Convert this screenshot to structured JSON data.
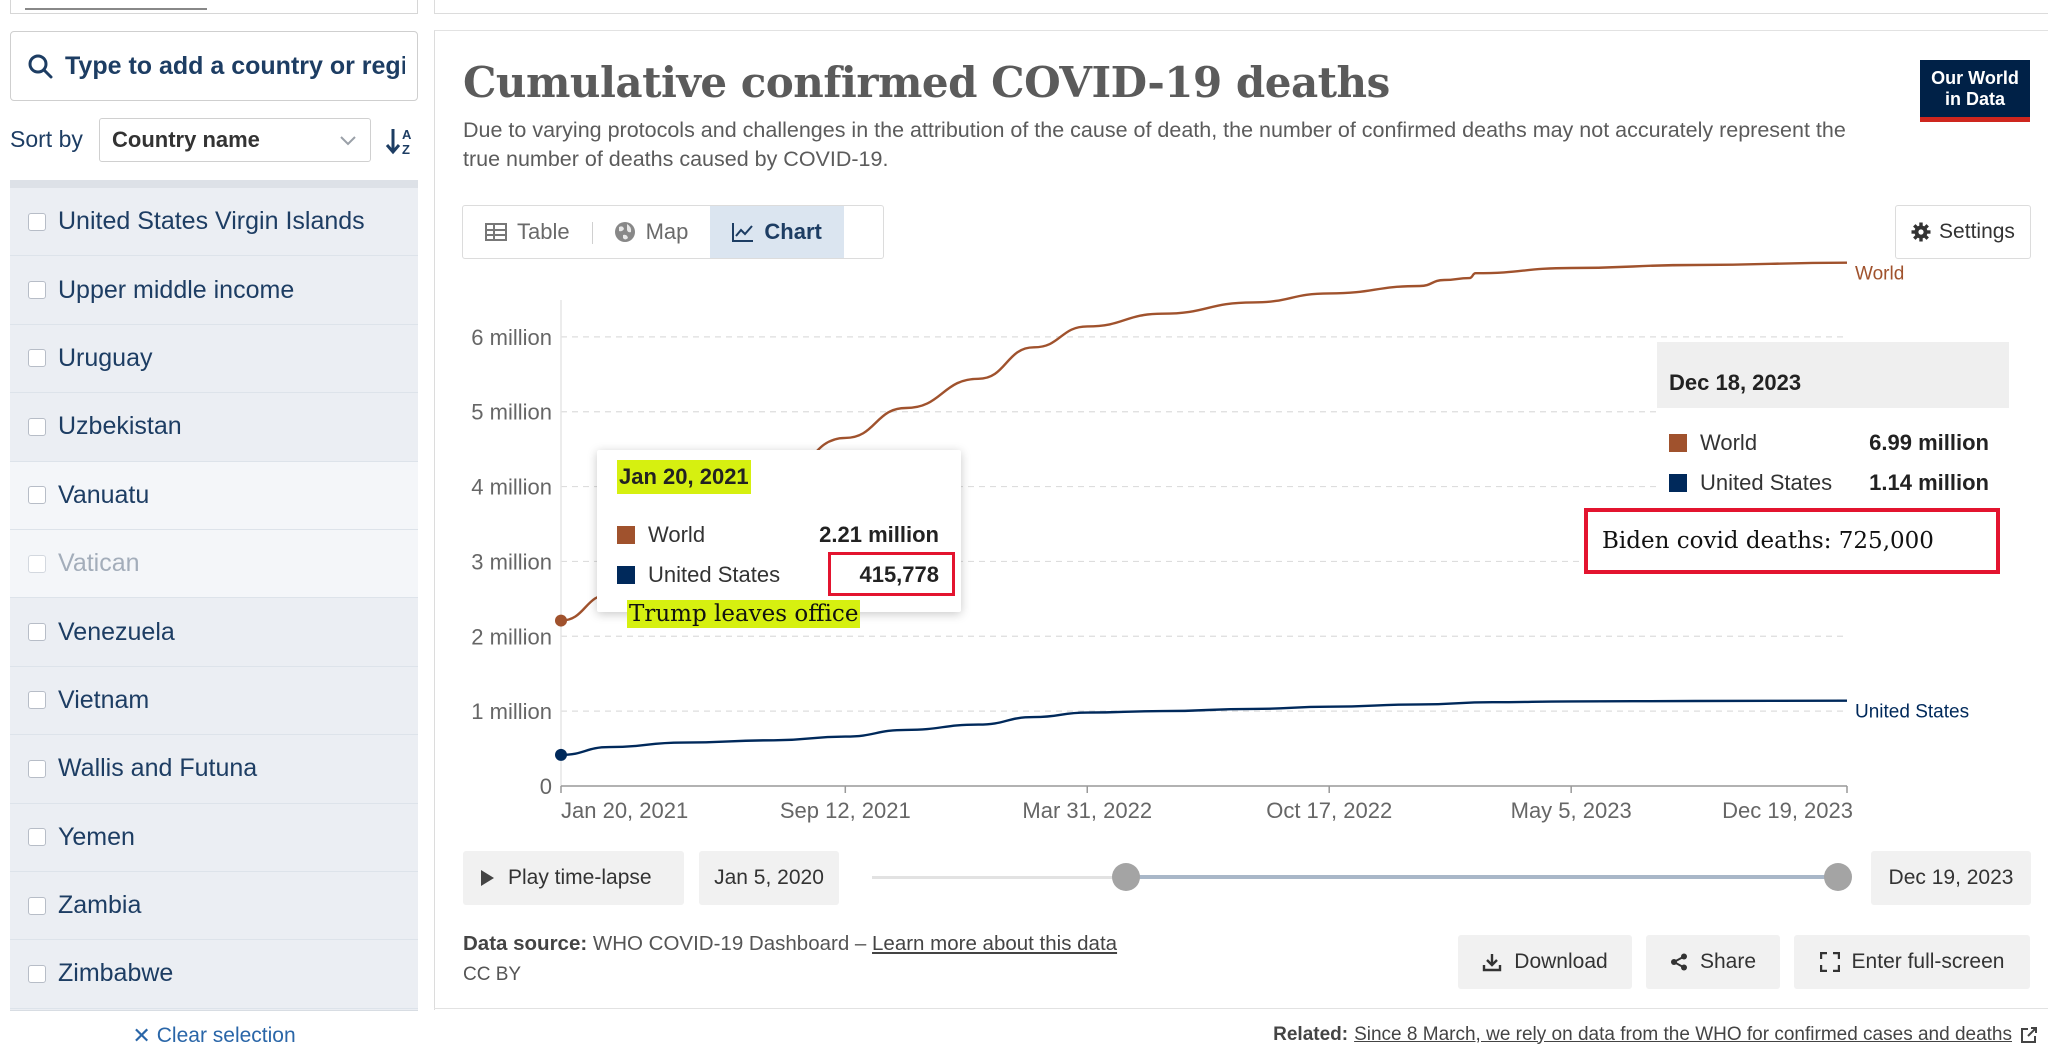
{
  "sidebar": {
    "search_placeholder": "Type to add a country or region",
    "sort_label": "Sort by",
    "sort_value": "Country name",
    "items": [
      {
        "label": "United States Virgin Islands",
        "disabled": false
      },
      {
        "label": "Upper middle income",
        "disabled": false
      },
      {
        "label": "Uruguay",
        "disabled": false
      },
      {
        "label": "Uzbekistan",
        "disabled": false
      },
      {
        "label": "Vanuatu",
        "disabled": false
      },
      {
        "label": "Vatican",
        "disabled": true
      },
      {
        "label": "Venezuela",
        "disabled": false
      },
      {
        "label": "Vietnam",
        "disabled": false
      },
      {
        "label": "Wallis and Futuna",
        "disabled": false
      },
      {
        "label": "Yemen",
        "disabled": false
      },
      {
        "label": "Zambia",
        "disabled": false
      },
      {
        "label": "Zimbabwe",
        "disabled": false
      }
    ],
    "clear_selection": "Clear selection"
  },
  "header": {
    "title": "Cumulative confirmed COVID-19 deaths",
    "subtitle": "Due to varying protocols and challenges in the attribution of the cause of death, the number of confirmed deaths may not accurately represent the true number of deaths caused by COVID-19.",
    "logo_line1": "Our World",
    "logo_line2": "in Data"
  },
  "tabs": [
    {
      "label": "Table",
      "icon": "table-icon"
    },
    {
      "label": "Map",
      "icon": "globe-icon"
    },
    {
      "label": "Chart",
      "icon": "line-chart-icon",
      "active": true
    }
  ],
  "settings_label": "Settings",
  "tooltip_left": {
    "date": "Jan 20, 2021",
    "rows": [
      {
        "name": "World",
        "value": "2.21 million"
      },
      {
        "name": "United States",
        "value": "415,778"
      }
    ],
    "annotation": "Trump leaves office"
  },
  "tooltip_right": {
    "date": "Dec 18, 2023",
    "rows": [
      {
        "name": "World",
        "value": "6.99 million"
      },
      {
        "name": "United States",
        "value": "1.14 million"
      }
    ],
    "annotation": "Biden covid deaths: 725,000"
  },
  "timeline": {
    "play_label": "Play time-lapse",
    "start_date": "Jan 5, 2020",
    "end_date": "Dec 19, 2023"
  },
  "footer": {
    "source_label": "Data source:",
    "source_text": "WHO COVID-19 Dashboard –",
    "source_link": "Learn more about this data",
    "license": "CC BY",
    "download": "Download",
    "share": "Share",
    "fullscreen": "Enter full-screen",
    "related_label": "Related:",
    "related_link": "Since 8 March, we rely on data from the WHO for confirmed cases and deaths"
  },
  "colors": {
    "world": "#a0522d",
    "united_states": "#00295b",
    "highlight": "#d6f010",
    "annotation_box": "#e3142f"
  },
  "chart_data": {
    "type": "line",
    "title": "Cumulative confirmed COVID-19 deaths",
    "xlabel": "",
    "ylabel": "",
    "x_ticks": [
      "Jan 20, 2021",
      "Sep 12, 2021",
      "Mar 31, 2022",
      "Oct 17, 2022",
      "May 5, 2023",
      "Dec 19, 2023"
    ],
    "y_ticks": [
      {
        "value": 0,
        "label": "0"
      },
      {
        "value": 1000000,
        "label": "1 million"
      },
      {
        "value": 2000000,
        "label": "2 million"
      },
      {
        "value": 3000000,
        "label": "3 million"
      },
      {
        "value": 4000000,
        "label": "4 million"
      },
      {
        "value": 5000000,
        "label": "5 million"
      },
      {
        "value": 6000000,
        "label": "6 million"
      }
    ],
    "ylim": [
      0,
      7000000
    ],
    "xlim": [
      "2021-01-20",
      "2023-12-19"
    ],
    "grid": true,
    "series": [
      {
        "name": "World",
        "color": "#a0522d",
        "points": [
          [
            "2021-01-20",
            2210000
          ],
          [
            "2021-03-01",
            2560000
          ],
          [
            "2021-04-15",
            3000000
          ],
          [
            "2021-06-01",
            3600000
          ],
          [
            "2021-07-15",
            4080000
          ],
          [
            "2021-09-12",
            4650000
          ],
          [
            "2021-11-01",
            5050000
          ],
          [
            "2021-12-31",
            5440000
          ],
          [
            "2022-02-15",
            5860000
          ],
          [
            "2022-03-31",
            6140000
          ],
          [
            "2022-06-01",
            6310000
          ],
          [
            "2022-08-15",
            6460000
          ],
          [
            "2022-10-17",
            6580000
          ],
          [
            "2022-12-31",
            6680000
          ],
          [
            "2023-01-20",
            6760000
          ],
          [
            "2023-02-10",
            6785000
          ],
          [
            "2023-02-15",
            6850000
          ],
          [
            "2023-05-05",
            6920000
          ],
          [
            "2023-08-15",
            6960000
          ],
          [
            "2023-12-19",
            6990000
          ]
        ]
      },
      {
        "name": "United States",
        "color": "#00295b",
        "points": [
          [
            "2021-01-20",
            415778
          ],
          [
            "2021-03-01",
            520000
          ],
          [
            "2021-05-01",
            580000
          ],
          [
            "2021-07-15",
            610000
          ],
          [
            "2021-09-12",
            660000
          ],
          [
            "2021-11-01",
            750000
          ],
          [
            "2021-12-31",
            820000
          ],
          [
            "2022-02-15",
            920000
          ],
          [
            "2022-03-31",
            980000
          ],
          [
            "2022-06-01",
            1000000
          ],
          [
            "2022-08-15",
            1030000
          ],
          [
            "2022-10-17",
            1060000
          ],
          [
            "2022-12-31",
            1090000
          ],
          [
            "2023-03-01",
            1120000
          ],
          [
            "2023-05-05",
            1130000
          ],
          [
            "2023-08-15",
            1135000
          ],
          [
            "2023-12-19",
            1140000
          ]
        ]
      }
    ],
    "series_labels": [
      "World",
      "United States"
    ]
  }
}
